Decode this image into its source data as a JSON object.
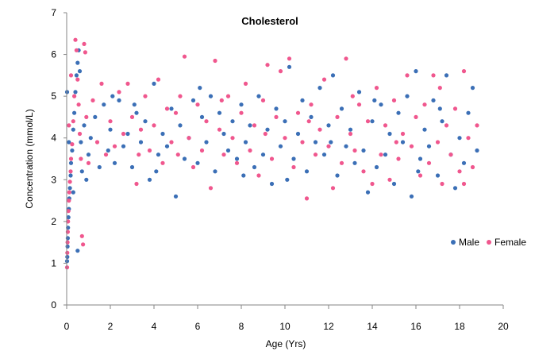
{
  "chart_data": {
    "type": "scatter",
    "title": "Cholesterol",
    "xlabel": "Age (Yrs)",
    "ylabel": "Concentration (mmol/L)",
    "xlim": [
      0,
      20
    ],
    "ylim": [
      0,
      7
    ],
    "xticks": [
      0,
      2,
      4,
      6,
      8,
      10,
      12,
      14,
      16,
      18,
      20
    ],
    "yticks": [
      0,
      1,
      2,
      3,
      4,
      5,
      6,
      7
    ],
    "grid": false,
    "legend_position": "right",
    "series": [
      {
        "name": "Male",
        "color": "#3B6FB6",
        "points": [
          [
            0.02,
            1.05
          ],
          [
            0.03,
            1.15
          ],
          [
            0.04,
            1.4
          ],
          [
            0.05,
            1.6
          ],
          [
            0.06,
            1.85
          ],
          [
            0.08,
            2.1
          ],
          [
            0.1,
            2.3
          ],
          [
            0.12,
            2.55
          ],
          [
            0.15,
            2.8
          ],
          [
            0.18,
            3.1
          ],
          [
            0.2,
            3.4
          ],
          [
            0.25,
            3.7
          ],
          [
            0.3,
            4.2
          ],
          [
            0.35,
            4.6
          ],
          [
            0.4,
            5.1
          ],
          [
            0.45,
            5.5
          ],
          [
            0.5,
            5.8
          ],
          [
            0.55,
            6.1
          ],
          [
            0.6,
            5.6
          ],
          [
            0.65,
            3.9
          ],
          [
            0.7,
            3.2
          ],
          [
            0.8,
            4.3
          ],
          [
            0.9,
            3.0
          ],
          [
            1.0,
            3.6
          ],
          [
            0.5,
            1.3
          ],
          [
            0.02,
            5.1
          ],
          [
            0.1,
            3.9
          ],
          [
            0.3,
            2.7
          ],
          [
            1.1,
            4.0
          ],
          [
            1.3,
            4.5
          ],
          [
            1.5,
            3.3
          ],
          [
            1.7,
            4.8
          ],
          [
            1.9,
            3.7
          ],
          [
            2.0,
            4.2
          ],
          [
            2.2,
            3.4
          ],
          [
            2.4,
            4.9
          ],
          [
            2.6,
            3.8
          ],
          [
            2.8,
            4.1
          ],
          [
            3.0,
            3.3
          ],
          [
            3.2,
            4.6
          ],
          [
            3.4,
            3.9
          ],
          [
            3.6,
            4.4
          ],
          [
            3.8,
            3.0
          ],
          [
            4.0,
            5.3
          ],
          [
            4.2,
            3.6
          ],
          [
            4.4,
            4.1
          ],
          [
            4.6,
            3.8
          ],
          [
            4.8,
            4.7
          ],
          [
            5.0,
            2.6
          ],
          [
            5.2,
            4.3
          ],
          [
            5.4,
            3.5
          ],
          [
            5.6,
            4.0
          ],
          [
            5.8,
            4.9
          ],
          [
            6.0,
            3.4
          ],
          [
            6.2,
            4.5
          ],
          [
            6.4,
            3.9
          ],
          [
            6.6,
            5.0
          ],
          [
            6.8,
            3.2
          ],
          [
            7.0,
            4.6
          ],
          [
            7.2,
            4.1
          ],
          [
            7.4,
            3.7
          ],
          [
            7.6,
            4.4
          ],
          [
            7.8,
            3.5
          ],
          [
            8.0,
            4.8
          ],
          [
            8.2,
            3.9
          ],
          [
            8.4,
            4.3
          ],
          [
            8.6,
            3.3
          ],
          [
            8.8,
            5.0
          ],
          [
            9.0,
            3.6
          ],
          [
            9.2,
            4.2
          ],
          [
            9.4,
            2.9
          ],
          [
            9.6,
            4.7
          ],
          [
            9.8,
            3.8
          ],
          [
            10.0,
            4.4
          ],
          [
            10.2,
            5.7
          ],
          [
            10.4,
            3.5
          ],
          [
            10.6,
            4.1
          ],
          [
            10.8,
            4.9
          ],
          [
            11.0,
            3.2
          ],
          [
            11.2,
            4.5
          ],
          [
            11.4,
            3.9
          ],
          [
            11.6,
            5.2
          ],
          [
            11.8,
            3.6
          ],
          [
            12.0,
            4.3
          ],
          [
            12.2,
            5.5
          ],
          [
            12.4,
            3.1
          ],
          [
            12.6,
            4.7
          ],
          [
            12.8,
            3.8
          ],
          [
            13.0,
            4.2
          ],
          [
            13.2,
            3.4
          ],
          [
            13.4,
            5.1
          ],
          [
            13.6,
            3.7
          ],
          [
            13.8,
            2.7
          ],
          [
            14.0,
            4.4
          ],
          [
            14.2,
            3.3
          ],
          [
            14.4,
            4.8
          ],
          [
            14.6,
            3.6
          ],
          [
            14.8,
            4.1
          ],
          [
            15.0,
            2.9
          ],
          [
            15.2,
            4.6
          ],
          [
            15.4,
            3.9
          ],
          [
            15.6,
            5.0
          ],
          [
            15.8,
            2.6
          ],
          [
            16.0,
            5.6
          ],
          [
            16.2,
            3.5
          ],
          [
            16.4,
            4.2
          ],
          [
            16.6,
            3.8
          ],
          [
            16.8,
            4.9
          ],
          [
            17.0,
            3.1
          ],
          [
            17.2,
            4.4
          ],
          [
            17.4,
            5.5
          ],
          [
            17.6,
            3.6
          ],
          [
            17.8,
            2.8
          ],
          [
            18.0,
            4.0
          ],
          [
            18.2,
            3.4
          ],
          [
            18.4,
            4.6
          ],
          [
            18.6,
            5.2
          ],
          [
            18.8,
            3.7
          ],
          [
            3.1,
            4.8
          ],
          [
            4.1,
            3.2
          ],
          [
            6.1,
            5.2
          ],
          [
            8.1,
            3.1
          ],
          [
            10.1,
            3.0
          ],
          [
            12.1,
            3.9
          ],
          [
            14.1,
            4.9
          ],
          [
            16.1,
            3.2
          ],
          [
            17.1,
            4.7
          ],
          [
            2.1,
            5.0
          ]
        ]
      },
      {
        "name": "Female",
        "color": "#F0578E",
        "points": [
          [
            0.02,
            0.9
          ],
          [
            0.03,
            1.25
          ],
          [
            0.04,
            1.5
          ],
          [
            0.05,
            1.75
          ],
          [
            0.06,
            2.0
          ],
          [
            0.08,
            2.25
          ],
          [
            0.1,
            2.5
          ],
          [
            0.12,
            2.7
          ],
          [
            0.15,
            2.95
          ],
          [
            0.18,
            3.2
          ],
          [
            0.2,
            3.5
          ],
          [
            0.25,
            3.85
          ],
          [
            0.3,
            4.4
          ],
          [
            0.35,
            5.0
          ],
          [
            0.4,
            6.35
          ],
          [
            0.45,
            6.1
          ],
          [
            0.5,
            5.4
          ],
          [
            0.55,
            4.8
          ],
          [
            0.6,
            4.1
          ],
          [
            0.65,
            3.5
          ],
          [
            0.7,
            1.65
          ],
          [
            0.75,
            1.45
          ],
          [
            0.8,
            6.25
          ],
          [
            0.85,
            6.05
          ],
          [
            0.9,
            4.5
          ],
          [
            1.0,
            3.4
          ],
          [
            0.2,
            5.5
          ],
          [
            0.1,
            4.3
          ],
          [
            1.2,
            4.9
          ],
          [
            1.4,
            3.9
          ],
          [
            1.6,
            5.3
          ],
          [
            1.8,
            3.6
          ],
          [
            2.0,
            4.4
          ],
          [
            2.2,
            3.8
          ],
          [
            2.4,
            5.1
          ],
          [
            2.6,
            4.1
          ],
          [
            2.8,
            5.3
          ],
          [
            3.0,
            4.5
          ],
          [
            3.2,
            2.9
          ],
          [
            3.4,
            4.2
          ],
          [
            3.6,
            5.0
          ],
          [
            3.8,
            3.7
          ],
          [
            4.0,
            4.3
          ],
          [
            4.2,
            5.4
          ],
          [
            4.4,
            3.4
          ],
          [
            4.6,
            4.7
          ],
          [
            4.8,
            3.9
          ],
          [
            5.0,
            4.6
          ],
          [
            5.2,
            5.0
          ],
          [
            5.4,
            5.95
          ],
          [
            5.6,
            4.0
          ],
          [
            5.8,
            3.3
          ],
          [
            6.0,
            4.8
          ],
          [
            6.2,
            3.7
          ],
          [
            6.4,
            4.4
          ],
          [
            6.6,
            2.8
          ],
          [
            6.8,
            5.85
          ],
          [
            7.0,
            4.2
          ],
          [
            7.2,
            3.6
          ],
          [
            7.4,
            5.0
          ],
          [
            7.6,
            4.0
          ],
          [
            7.8,
            3.4
          ],
          [
            8.0,
            4.6
          ],
          [
            8.2,
            5.3
          ],
          [
            8.4,
            3.7
          ],
          [
            8.6,
            4.3
          ],
          [
            8.8,
            3.1
          ],
          [
            9.0,
            4.9
          ],
          [
            9.2,
            5.75
          ],
          [
            9.4,
            3.5
          ],
          [
            9.6,
            4.5
          ],
          [
            9.8,
            5.6
          ],
          [
            10.0,
            4.0
          ],
          [
            10.2,
            5.9
          ],
          [
            10.4,
            3.3
          ],
          [
            10.6,
            4.6
          ],
          [
            10.8,
            3.9
          ],
          [
            11.0,
            2.55
          ],
          [
            11.2,
            4.8
          ],
          [
            11.4,
            3.6
          ],
          [
            11.6,
            4.2
          ],
          [
            11.8,
            5.4
          ],
          [
            12.0,
            3.8
          ],
          [
            12.2,
            2.8
          ],
          [
            12.4,
            4.5
          ],
          [
            12.6,
            3.4
          ],
          [
            12.8,
            5.9
          ],
          [
            13.0,
            4.1
          ],
          [
            13.2,
            3.7
          ],
          [
            13.4,
            4.8
          ],
          [
            13.6,
            3.2
          ],
          [
            13.8,
            4.4
          ],
          [
            14.0,
            2.9
          ],
          [
            14.2,
            5.2
          ],
          [
            14.4,
            3.6
          ],
          [
            14.6,
            4.3
          ],
          [
            14.8,
            3.0
          ],
          [
            15.0,
            4.9
          ],
          [
            15.2,
            3.5
          ],
          [
            15.4,
            4.1
          ],
          [
            15.6,
            5.5
          ],
          [
            15.8,
            3.8
          ],
          [
            16.0,
            4.5
          ],
          [
            16.2,
            3.1
          ],
          [
            16.4,
            4.8
          ],
          [
            16.6,
            3.4
          ],
          [
            16.8,
            5.5
          ],
          [
            17.0,
            3.9
          ],
          [
            17.2,
            2.9
          ],
          [
            17.4,
            4.3
          ],
          [
            17.6,
            3.6
          ],
          [
            17.8,
            4.7
          ],
          [
            18.0,
            3.2
          ],
          [
            18.2,
            5.6
          ],
          [
            18.4,
            4.0
          ],
          [
            18.6,
            3.3
          ],
          [
            18.8,
            4.3
          ],
          [
            18.2,
            2.9
          ],
          [
            5.1,
            3.6
          ],
          [
            9.1,
            4.1
          ],
          [
            11.1,
            4.4
          ],
          [
            13.1,
            5.0
          ],
          [
            15.1,
            3.9
          ],
          [
            17.1,
            5.2
          ],
          [
            7.1,
            4.9
          ],
          [
            3.3,
            3.6
          ]
        ]
      }
    ]
  }
}
